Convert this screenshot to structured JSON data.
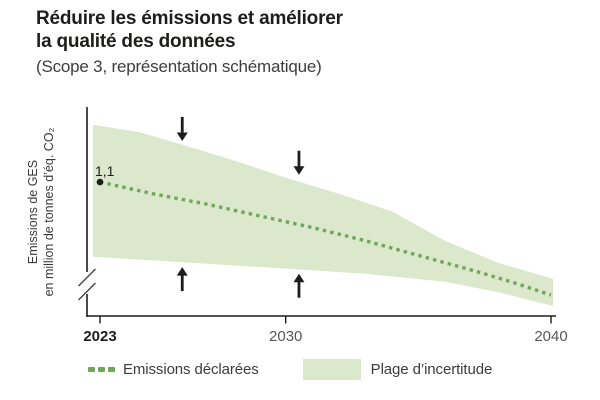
{
  "chart_data": {
    "type": "area",
    "title_lines": [
      "Réduire les émissions et améliorer",
      "la qualité des données"
    ],
    "subtitle": "(Scope 3, représentation schématique)",
    "y_label_lines": [
      "Emissions de GES",
      "en million de tonnes d’éq. CO₂"
    ],
    "x_range": [
      2023,
      2040
    ],
    "y_axis_break": true,
    "grid": false,
    "legend_position": "bottom",
    "x_ticks": [
      {
        "label": "2023",
        "year": 2023,
        "bold": true
      },
      {
        "label": "2030",
        "year": 2030,
        "bold": false
      },
      {
        "label": "2040",
        "year": 2040,
        "bold": false
      }
    ],
    "start_point": {
      "year": 2023,
      "value": 1.1,
      "label": "1,1"
    },
    "series": [
      {
        "name": "Emissions déclarées",
        "style": "dotted",
        "color": "#6fa65a",
        "points": [
          [
            2023,
            1.1
          ],
          [
            2025,
            1.02
          ],
          [
            2027,
            0.95
          ],
          [
            2029,
            0.87
          ],
          [
            2031,
            0.79
          ],
          [
            2033,
            0.7
          ],
          [
            2035,
            0.6
          ],
          [
            2037,
            0.5
          ],
          [
            2038.5,
            0.42
          ],
          [
            2040,
            0.33
          ]
        ]
      }
    ],
    "band": {
      "name": "Plage d’incertitude",
      "color": "#dce8cc",
      "upper": [
        [
          2023,
          1.49
        ],
        [
          2024.5,
          1.44
        ],
        [
          2026,
          1.36
        ],
        [
          2028,
          1.25
        ],
        [
          2030,
          1.13
        ],
        [
          2032,
          1.02
        ],
        [
          2034,
          0.9
        ],
        [
          2036,
          0.7
        ],
        [
          2038,
          0.55
        ],
        [
          2040,
          0.44
        ]
      ],
      "lower": [
        [
          2023,
          0.59
        ],
        [
          2026,
          0.555
        ],
        [
          2030,
          0.51
        ],
        [
          2033,
          0.475
        ],
        [
          2036,
          0.42
        ],
        [
          2038,
          0.35
        ],
        [
          2040,
          0.255
        ]
      ]
    },
    "arrows": [
      {
        "direction": "down",
        "year": 2026.1,
        "tip_value": 1.38
      },
      {
        "direction": "down",
        "year": 2030.5,
        "tip_value": 1.15
      },
      {
        "direction": "up",
        "year": 2026.1,
        "tip_value": 0.52
      },
      {
        "direction": "up",
        "year": 2030.5,
        "tip_value": 0.475
      }
    ]
  },
  "colors": {
    "band": "#dce8cc",
    "line": "#6fa65a",
    "ink": "#1d1d1b",
    "muted": "#575756",
    "break_slash": "#4a4a49"
  }
}
